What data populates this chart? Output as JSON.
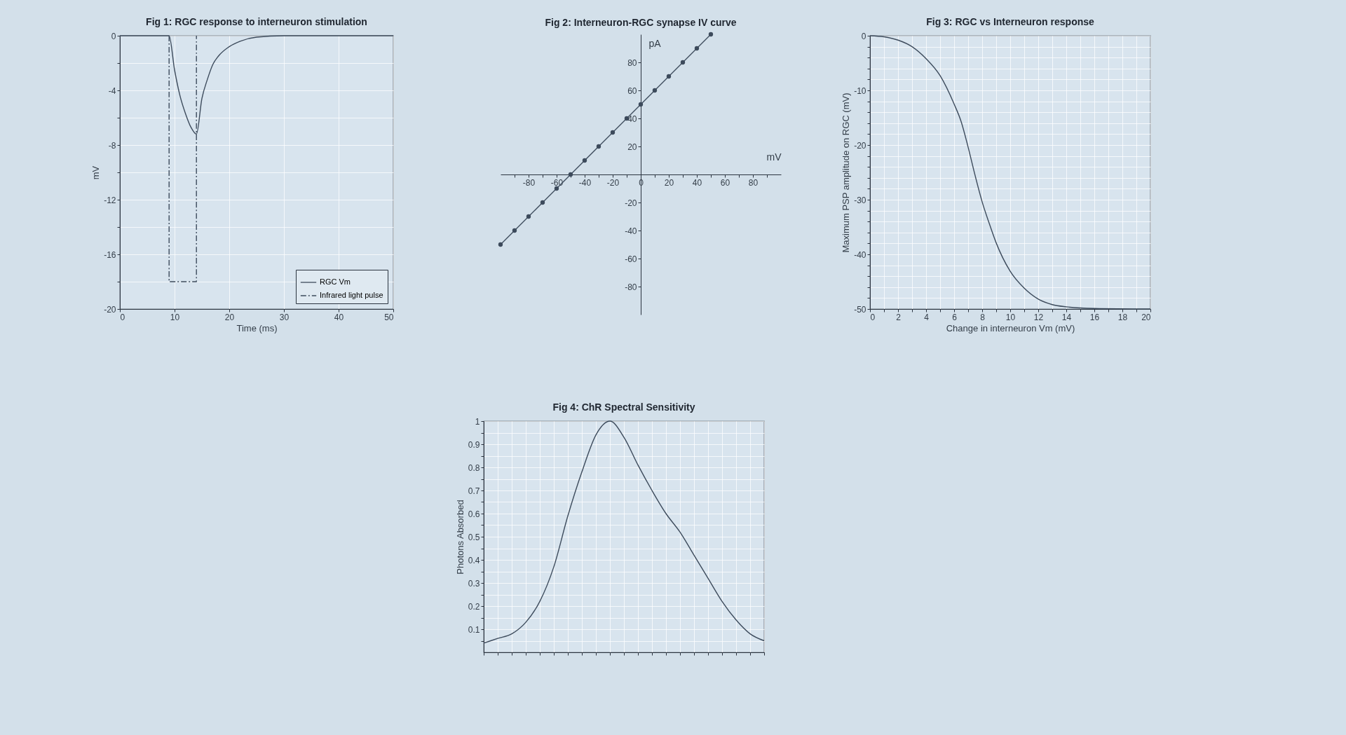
{
  "chart_data": [
    {
      "type": "line",
      "title": "Fig 1: RGC response to interneuron stimulation",
      "xlabel": "Time (ms)",
      "ylabel": "mV",
      "xlim": [
        0,
        50
      ],
      "ylim": [
        -20,
        0
      ],
      "xticks": [
        0,
        10,
        20,
        30,
        40,
        50
      ],
      "yticks": [
        0,
        {
          "value": -2,
          "label": null
        },
        -4,
        {
          "value": -6,
          "label": null
        },
        -8,
        {
          "value": -10,
          "label": null
        },
        -12,
        {
          "value": -14,
          "label": null
        },
        -16,
        {
          "value": -18,
          "label": null
        },
        -20
      ],
      "grid": true,
      "legend": "bottom right",
      "series": [
        {
          "name": "RGC Vm",
          "color": "#3d4b5c",
          "line_style": "solid",
          "x": [
            0,
            9,
            10,
            11,
            12,
            13,
            14,
            15,
            16,
            17,
            18,
            20,
            22,
            25,
            30,
            50
          ],
          "values": [
            0,
            0,
            -2.5,
            -4.4,
            -5.7,
            -6.7,
            -7.2,
            -4.6,
            -3.2,
            -2.1,
            -1.5,
            -0.8,
            -0.4,
            -0.1,
            0,
            0
          ]
        },
        {
          "name": "Infrared light pulse",
          "color": "#3d4b5c",
          "line_style": "dashdot",
          "x": [
            9,
            9,
            14,
            14
          ],
          "values": [
            0,
            -18,
            -18,
            0
          ]
        }
      ]
    },
    {
      "type": "line",
      "title": "Fig 2: Interneuron-RGC synapse IV curve",
      "xlabel": "mV",
      "ylabel": "pA",
      "xlim": [
        -100,
        100
      ],
      "ylim": [
        -100,
        100
      ],
      "xticks": [
        {
          "value": -90,
          "label": null
        },
        -80,
        {
          "value": -70,
          "label": null
        },
        -60,
        {
          "value": -50,
          "label": null
        },
        -40,
        {
          "value": -30,
          "label": null
        },
        -20,
        {
          "value": -10,
          "label": null
        },
        0,
        {
          "value": 10,
          "label": null
        },
        20,
        {
          "value": 30,
          "label": null
        },
        40,
        {
          "value": 50,
          "label": null
        },
        60,
        {
          "value": 70,
          "label": null
        },
        80,
        {
          "value": 90,
          "label": null
        }
      ],
      "yticks": [
        -80,
        -60,
        -40,
        -20,
        20,
        40,
        60,
        80
      ],
      "marker": "circle",
      "series": [
        {
          "color": "#3d4b5c",
          "x": [
            -100,
            -90,
            -80,
            -70,
            -60,
            -50,
            -40,
            -30,
            -20,
            -10,
            0,
            10,
            20,
            30,
            40,
            50
          ],
          "values": [
            -50,
            -40,
            -30,
            -20,
            -10,
            0,
            10,
            20,
            30,
            40,
            50,
            60,
            70,
            80,
            90,
            100
          ]
        }
      ]
    },
    {
      "type": "line",
      "title": "Fig 3: RGC vs Interneuron response",
      "xlabel": "Change in interneuron Vm (mV)",
      "ylabel": "Maximum PSP amplitude on RGC (mV)",
      "xlim": [
        0,
        20
      ],
      "ylim": [
        -50,
        0
      ],
      "xticks": [
        0,
        {
          "value": 1,
          "label": null
        },
        2,
        {
          "value": 3,
          "label": null
        },
        4,
        {
          "value": 5,
          "label": null
        },
        6,
        {
          "value": 7,
          "label": null
        },
        8,
        {
          "value": 9,
          "label": null
        },
        10,
        {
          "value": 11,
          "label": null
        },
        12,
        {
          "value": 13,
          "label": null
        },
        14,
        {
          "value": 15,
          "label": null
        },
        16,
        {
          "value": 17,
          "label": null
        },
        18,
        {
          "value": 19,
          "label": null
        },
        20
      ],
      "yticks": [
        0,
        {
          "value": -2,
          "label": null
        },
        {
          "value": -4,
          "label": null
        },
        {
          "value": -6,
          "label": null
        },
        {
          "value": -8,
          "label": null
        },
        -10,
        {
          "value": -12,
          "label": null
        },
        {
          "value": -14,
          "label": null
        },
        {
          "value": -16,
          "label": null
        },
        {
          "value": -18,
          "label": null
        },
        -20,
        {
          "value": -22,
          "label": null
        },
        {
          "value": -24,
          "label": null
        },
        {
          "value": -26,
          "label": null
        },
        {
          "value": -28,
          "label": null
        },
        -30,
        {
          "value": -32,
          "label": null
        },
        {
          "value": -34,
          "label": null
        },
        {
          "value": -36,
          "label": null
        },
        {
          "value": -38,
          "label": null
        },
        -40,
        {
          "value": -42,
          "label": null
        },
        {
          "value": -44,
          "label": null
        },
        {
          "value": -46,
          "label": null
        },
        {
          "value": -48,
          "label": null
        },
        -50
      ],
      "grid": true,
      "series": [
        {
          "color": "#3d4b5c",
          "x": [
            0,
            1,
            2,
            3,
            4,
            5,
            6,
            6.5,
            7,
            7.5,
            8,
            8.5,
            9,
            10,
            11,
            12,
            13,
            14,
            16,
            20
          ],
          "values": [
            0,
            -0.2,
            -0.8,
            -2,
            -4.2,
            -7.3,
            -12.5,
            -15.7,
            -20.4,
            -25.6,
            -30.4,
            -34.3,
            -37.9,
            -43.1,
            -46.2,
            -48.2,
            -49.2,
            -49.6,
            -49.9,
            -50
          ]
        }
      ]
    },
    {
      "type": "line",
      "title": "Fig 4: ChR Spectral Sensitivity",
      "ylabel": "Photons Absorbed",
      "categories": [
        null,
        null,
        null,
        null,
        null,
        null,
        null,
        null,
        null,
        null,
        null,
        null,
        null,
        null,
        null,
        null,
        null,
        null,
        null,
        null,
        null
      ],
      "ylim": [
        0,
        1
      ],
      "yticks": [
        {
          "value": 0.05,
          "label": null
        },
        0.1,
        {
          "value": 0.15,
          "label": null
        },
        0.2,
        {
          "value": 0.25,
          "label": null
        },
        0.3,
        {
          "value": 0.35,
          "label": null
        },
        0.4,
        {
          "value": 0.45,
          "label": null
        },
        0.5,
        {
          "value": 0.55,
          "label": null
        },
        0.6,
        {
          "value": 0.65,
          "label": null
        },
        0.7,
        {
          "value": 0.75,
          "label": null
        },
        0.8,
        {
          "value": 0.85,
          "label": null
        },
        0.9,
        {
          "value": 0.95,
          "label": null
        },
        1
      ],
      "grid": true,
      "series": [
        {
          "color": "#3d4b5c",
          "values": [
            0.04,
            0.06,
            0.08,
            0.13,
            0.22,
            0.37,
            0.59,
            0.78,
            0.94,
            1.0,
            0.93,
            0.81,
            0.7,
            0.6,
            0.52,
            0.42,
            0.32,
            0.22,
            0.14,
            0.08,
            0.05
          ]
        }
      ]
    }
  ]
}
